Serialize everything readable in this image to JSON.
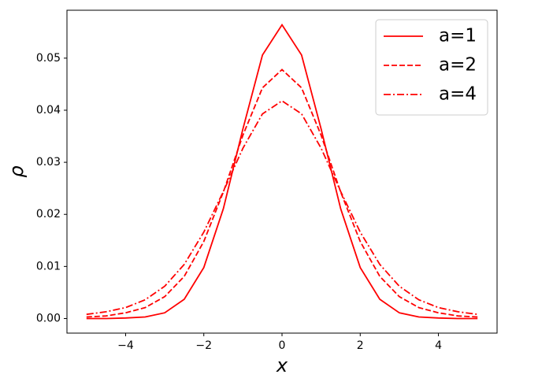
{
  "chart_data": {
    "type": "line",
    "x_label": "x",
    "y_label": "ρ",
    "x": [
      -5,
      -4.5,
      -4,
      -3.5,
      -3,
      -2.5,
      -2,
      -1.5,
      -1,
      -0.5,
      0,
      0.5,
      1,
      1.5,
      2,
      2.5,
      3,
      3.5,
      4,
      4.5,
      5
    ],
    "series": [
      {
        "name": "a=1",
        "color": "#ff0000",
        "linestyle": "solid",
        "values": [
          0.0,
          0.0,
          0.0001,
          0.0003,
          0.0011,
          0.0037,
          0.0098,
          0.0211,
          0.0364,
          0.0506,
          0.0564,
          0.0506,
          0.0364,
          0.0211,
          0.0098,
          0.0037,
          0.0011,
          0.0003,
          0.0001,
          0.0,
          0.0
        ]
      },
      {
        "name": "a=2",
        "color": "#ff0000",
        "linestyle": "dashed",
        "values": [
          0.0003,
          0.0005,
          0.0011,
          0.0021,
          0.0042,
          0.0081,
          0.0148,
          0.0243,
          0.0352,
          0.0443,
          0.0478,
          0.0443,
          0.0352,
          0.0243,
          0.0148,
          0.0081,
          0.0042,
          0.0021,
          0.0011,
          0.0005,
          0.0003
        ]
      },
      {
        "name": "a=4",
        "color": "#ff0000",
        "linestyle": "dashdot",
        "values": [
          0.0008,
          0.0013,
          0.0021,
          0.0036,
          0.0062,
          0.0104,
          0.0166,
          0.0244,
          0.0327,
          0.0393,
          0.0418,
          0.0393,
          0.0327,
          0.0244,
          0.0166,
          0.0104,
          0.0062,
          0.0036,
          0.0021,
          0.0013,
          0.0008
        ]
      }
    ],
    "xlim": [
      -5.5,
      5.5
    ],
    "ylim": [
      -0.0028,
      0.0592
    ],
    "xticks": [
      {
        "value": -4,
        "label": "−4"
      },
      {
        "value": -2,
        "label": "−2"
      },
      0,
      2,
      4
    ],
    "yticks": [
      {
        "value": 0,
        "label": "0.00"
      },
      {
        "value": 0.01,
        "label": "0.01"
      },
      {
        "value": 0.02,
        "label": "0.02"
      },
      {
        "value": 0.03,
        "label": "0.03"
      },
      {
        "value": 0.04,
        "label": "0.04"
      },
      {
        "value": 0.05,
        "label": "0.05"
      }
    ],
    "legend": "upper right",
    "grid": false
  }
}
